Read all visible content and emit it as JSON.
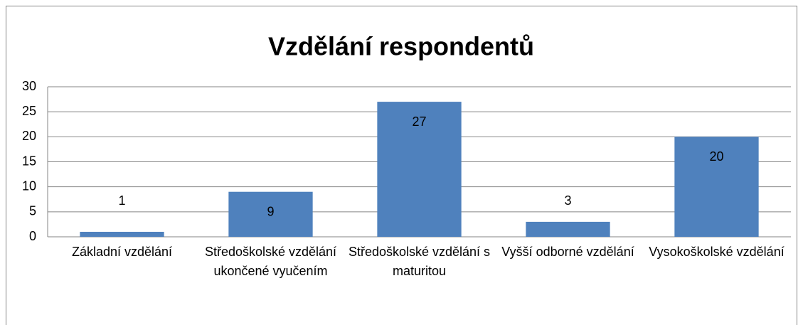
{
  "chart_data": {
    "type": "bar",
    "title": "Vzdělání respondentů",
    "categories": [
      "Základní vzdělání",
      "Středoškolské vzdělání ukončené vyučením",
      "Středoškolské vzdělání s maturitou",
      "Vyšší odborné vzdělání",
      "Vysokoškolské vzdělání"
    ],
    "values": [
      1,
      9,
      27,
      3,
      20
    ],
    "color": "#4f81bd",
    "ylim": [
      0,
      30
    ],
    "yticks": [
      0,
      5,
      10,
      15,
      20,
      25,
      30
    ],
    "grid": true
  }
}
